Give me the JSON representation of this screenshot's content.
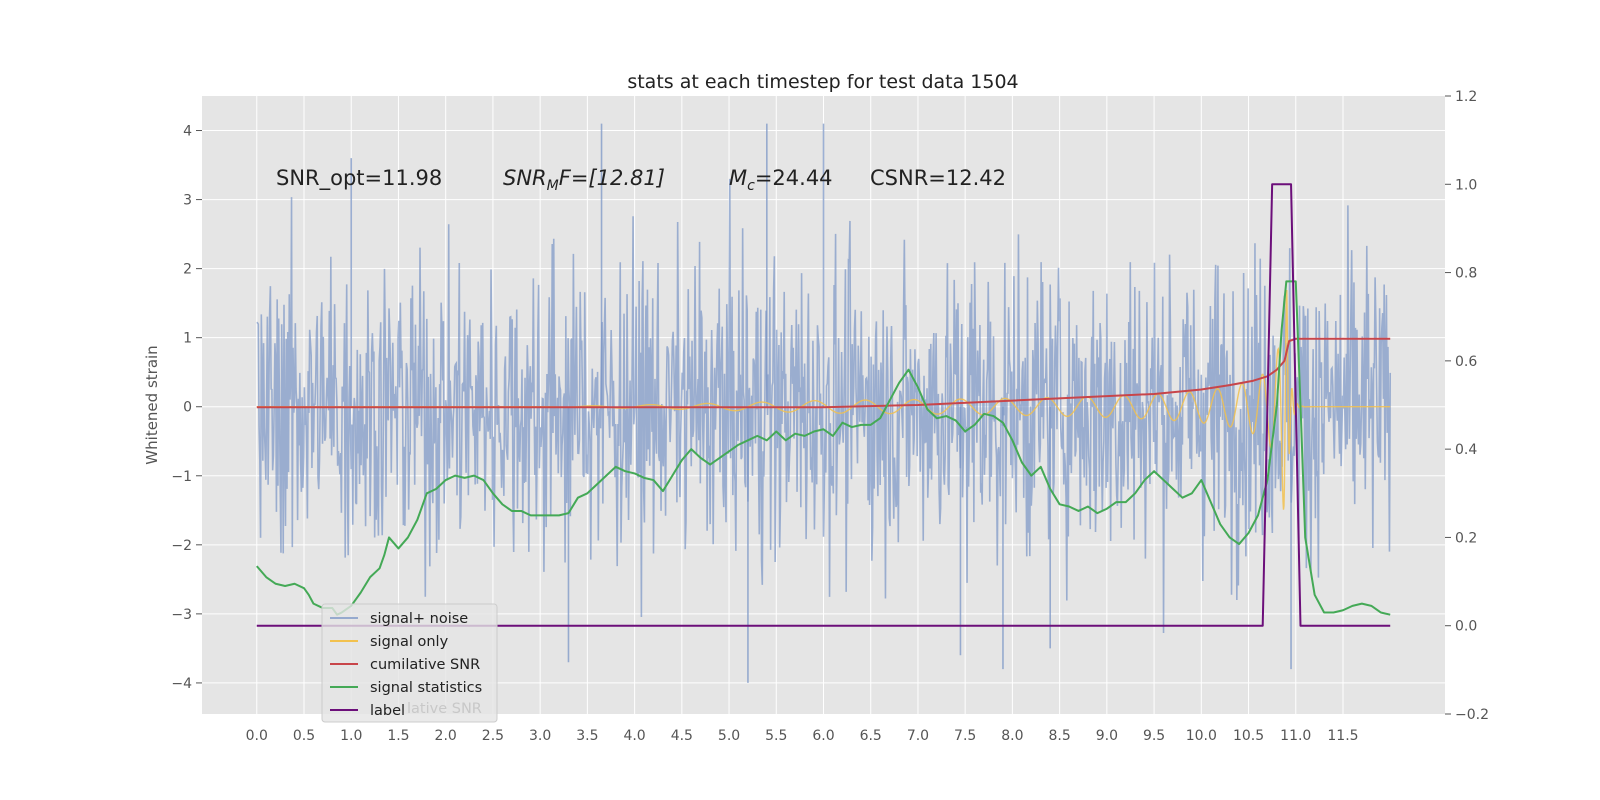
{
  "chart_data": {
    "type": "line",
    "title": "stats at each timestep for test data 1504",
    "ylabel": "Whitened strain",
    "xlim": [
      -0.58,
      12.58
    ],
    "ylim": [
      -4.45,
      4.5
    ],
    "y2lim": [
      -0.2,
      1.2
    ],
    "x_ticks": [
      "0.0",
      "0.5",
      "1.0",
      "1.5",
      "2.0",
      "2.5",
      "3.0",
      "3.5",
      "4.0",
      "4.5",
      "5.0",
      "5.5",
      "6.0",
      "6.5",
      "7.0",
      "7.5",
      "8.0",
      "8.5",
      "9.0",
      "9.5",
      "10.0",
      "10.5",
      "11.0",
      "11.5"
    ],
    "y_ticks": [
      "4",
      "3",
      "2",
      "1",
      "0",
      "−1",
      "−2",
      "−3",
      "−4"
    ],
    "y2_ticks": [
      "1.2",
      "1.0",
      "0.8",
      "0.6",
      "0.4",
      "0.2",
      "0.0",
      "−0.2"
    ],
    "grid": true,
    "annotations": {
      "snr_opt": "SNR_opt=11.98",
      "snr_mf_pre": "SNR",
      "snr_mf_sub": "M",
      "snr_mf_post": "F=[12.81]",
      "mc_pre": "M",
      "mc_sub": "c",
      "mc_post": "=24.44",
      "csnr": "CSNR=12.42"
    },
    "legend": {
      "position": "lower-left",
      "ghost_text": "lative SNR"
    },
    "colors": {
      "noise": "#7b96c6",
      "signal": "#f2c14e",
      "cumulative": "#c8454a",
      "statistics": "#44a956",
      "label": "#6c0f7a",
      "background": "#e5e5e5",
      "grid": "#ffffff"
    },
    "series": [
      {
        "name": "signal+ noise",
        "axis": "left",
        "kind": "noise",
        "x_range": [
          0.0,
          12.0
        ],
        "amplitude_rms": 1.1,
        "spikes": [
          {
            "x": 6.0,
            "y": 4.1
          },
          {
            "x": 5.4,
            "y": 4.1
          },
          {
            "x": 3.65,
            "y": 4.1
          },
          {
            "x": 1.0,
            "y": 3.6
          },
          {
            "x": 5.2,
            "y": -4.0
          },
          {
            "x": 3.3,
            "y": -3.7
          },
          {
            "x": 7.9,
            "y": -3.8
          },
          {
            "x": 10.95,
            "y": -3.8
          },
          {
            "x": 7.45,
            "y": -3.6
          },
          {
            "x": 8.4,
            "y": -3.5
          }
        ]
      },
      {
        "name": "signal only",
        "axis": "left",
        "kind": "chirp",
        "x_range": [
          0.0,
          12.0
        ],
        "merger_x": 10.9
      },
      {
        "name": "cumilative SNR",
        "axis": "right",
        "points": [
          [
            0.0,
            0.495
          ],
          [
            6.0,
            0.495
          ],
          [
            7.0,
            0.5
          ],
          [
            8.0,
            0.51
          ],
          [
            9.0,
            0.52
          ],
          [
            9.5,
            0.525
          ],
          [
            10.0,
            0.535
          ],
          [
            10.3,
            0.545
          ],
          [
            10.55,
            0.555
          ],
          [
            10.7,
            0.565
          ],
          [
            10.8,
            0.58
          ],
          [
            10.88,
            0.6
          ],
          [
            10.93,
            0.645
          ],
          [
            11.0,
            0.65
          ],
          [
            12.0,
            0.65
          ]
        ]
      },
      {
        "name": "signal statistics",
        "axis": "right",
        "points": [
          [
            0.0,
            0.135
          ],
          [
            0.1,
            0.11
          ],
          [
            0.2,
            0.095
          ],
          [
            0.3,
            0.09
          ],
          [
            0.4,
            0.095
          ],
          [
            0.5,
            0.085
          ],
          [
            0.55,
            0.07
          ],
          [
            0.6,
            0.05
          ],
          [
            0.7,
            0.04
          ],
          [
            0.8,
            0.04
          ],
          [
            0.85,
            0.025
          ],
          [
            0.9,
            0.03
          ],
          [
            1.0,
            0.045
          ],
          [
            1.05,
            0.06
          ],
          [
            1.1,
            0.075
          ],
          [
            1.2,
            0.11
          ],
          [
            1.3,
            0.13
          ],
          [
            1.35,
            0.16
          ],
          [
            1.4,
            0.2
          ],
          [
            1.5,
            0.175
          ],
          [
            1.6,
            0.2
          ],
          [
            1.7,
            0.24
          ],
          [
            1.8,
            0.3
          ],
          [
            1.9,
            0.31
          ],
          [
            2.0,
            0.33
          ],
          [
            2.1,
            0.34
          ],
          [
            2.2,
            0.335
          ],
          [
            2.3,
            0.34
          ],
          [
            2.4,
            0.33
          ],
          [
            2.5,
            0.3
          ],
          [
            2.6,
            0.275
          ],
          [
            2.7,
            0.26
          ],
          [
            2.8,
            0.26
          ],
          [
            2.9,
            0.25
          ],
          [
            3.0,
            0.25
          ],
          [
            3.1,
            0.25
          ],
          [
            3.2,
            0.25
          ],
          [
            3.3,
            0.255
          ],
          [
            3.4,
            0.29
          ],
          [
            3.5,
            0.3
          ],
          [
            3.6,
            0.32
          ],
          [
            3.7,
            0.34
          ],
          [
            3.8,
            0.36
          ],
          [
            3.9,
            0.35
          ],
          [
            4.0,
            0.345
          ],
          [
            4.1,
            0.335
          ],
          [
            4.2,
            0.33
          ],
          [
            4.3,
            0.305
          ],
          [
            4.4,
            0.34
          ],
          [
            4.5,
            0.375
          ],
          [
            4.6,
            0.4
          ],
          [
            4.7,
            0.38
          ],
          [
            4.8,
            0.365
          ],
          [
            4.9,
            0.38
          ],
          [
            5.0,
            0.395
          ],
          [
            5.1,
            0.41
          ],
          [
            5.2,
            0.42
          ],
          [
            5.3,
            0.43
          ],
          [
            5.4,
            0.42
          ],
          [
            5.5,
            0.44
          ],
          [
            5.6,
            0.42
          ],
          [
            5.7,
            0.435
          ],
          [
            5.8,
            0.43
          ],
          [
            5.9,
            0.44
          ],
          [
            6.0,
            0.445
          ],
          [
            6.1,
            0.43
          ],
          [
            6.2,
            0.46
          ],
          [
            6.3,
            0.45
          ],
          [
            6.4,
            0.455
          ],
          [
            6.5,
            0.455
          ],
          [
            6.6,
            0.47
          ],
          [
            6.7,
            0.51
          ],
          [
            6.8,
            0.55
          ],
          [
            6.9,
            0.58
          ],
          [
            7.0,
            0.54
          ],
          [
            7.1,
            0.49
          ],
          [
            7.2,
            0.47
          ],
          [
            7.3,
            0.475
          ],
          [
            7.4,
            0.465
          ],
          [
            7.5,
            0.44
          ],
          [
            7.6,
            0.455
          ],
          [
            7.7,
            0.48
          ],
          [
            7.8,
            0.475
          ],
          [
            7.9,
            0.46
          ],
          [
            8.0,
            0.42
          ],
          [
            8.1,
            0.37
          ],
          [
            8.2,
            0.34
          ],
          [
            8.3,
            0.36
          ],
          [
            8.4,
            0.31
          ],
          [
            8.5,
            0.275
          ],
          [
            8.6,
            0.27
          ],
          [
            8.7,
            0.26
          ],
          [
            8.8,
            0.27
          ],
          [
            8.9,
            0.255
          ],
          [
            9.0,
            0.265
          ],
          [
            9.1,
            0.28
          ],
          [
            9.2,
            0.28
          ],
          [
            9.3,
            0.3
          ],
          [
            9.4,
            0.33
          ],
          [
            9.5,
            0.35
          ],
          [
            9.6,
            0.33
          ],
          [
            9.7,
            0.31
          ],
          [
            9.8,
            0.29
          ],
          [
            9.9,
            0.3
          ],
          [
            10.0,
            0.33
          ],
          [
            10.1,
            0.28
          ],
          [
            10.2,
            0.23
          ],
          [
            10.3,
            0.2
          ],
          [
            10.4,
            0.185
          ],
          [
            10.5,
            0.21
          ],
          [
            10.6,
            0.25
          ],
          [
            10.7,
            0.33
          ],
          [
            10.8,
            0.5
          ],
          [
            10.85,
            0.67
          ],
          [
            10.9,
            0.78
          ],
          [
            11.0,
            0.78
          ],
          [
            11.05,
            0.5
          ],
          [
            11.1,
            0.2
          ],
          [
            11.2,
            0.07
          ],
          [
            11.3,
            0.03
          ],
          [
            11.4,
            0.03
          ],
          [
            11.5,
            0.035
          ],
          [
            11.6,
            0.045
          ],
          [
            11.7,
            0.05
          ],
          [
            11.8,
            0.045
          ],
          [
            11.9,
            0.03
          ],
          [
            12.0,
            0.025
          ]
        ]
      },
      {
        "name": "label",
        "axis": "right",
        "points": [
          [
            0.0,
            0.0
          ],
          [
            10.65,
            0.0
          ],
          [
            10.75,
            1.0
          ],
          [
            10.95,
            1.0
          ],
          [
            11.05,
            0.0
          ],
          [
            12.0,
            0.0
          ]
        ]
      }
    ]
  }
}
